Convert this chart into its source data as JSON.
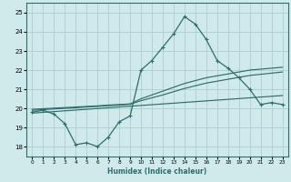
{
  "xlabel": "Humidex (Indice chaleur)",
  "ylabel": "",
  "bg_color": "#d0eaec",
  "grid_color": "#aecdd0",
  "line_color": "#2d6e6a",
  "xlim": [
    -0.5,
    23.5
  ],
  "ylim": [
    17.5,
    25.5
  ],
  "xticks": [
    0,
    1,
    2,
    3,
    4,
    5,
    6,
    7,
    8,
    9,
    10,
    11,
    12,
    13,
    14,
    15,
    16,
    17,
    18,
    19,
    20,
    21,
    22,
    23
  ],
  "yticks": [
    18,
    19,
    20,
    21,
    22,
    23,
    24,
    25
  ],
  "humidex": [
    19.8,
    19.9,
    19.7,
    19.2,
    18.1,
    18.2,
    18.0,
    18.5,
    19.3,
    19.6,
    22.0,
    22.5,
    23.2,
    23.9,
    24.8,
    24.4,
    23.6,
    22.5,
    22.1,
    21.6,
    21.0,
    20.2,
    20.3,
    20.2
  ],
  "line1": [
    19.95,
    19.98,
    20.01,
    20.04,
    20.07,
    20.1,
    20.13,
    20.17,
    20.2,
    20.23,
    20.5,
    20.7,
    20.9,
    21.1,
    21.3,
    21.45,
    21.6,
    21.7,
    21.8,
    21.9,
    22.0,
    22.05,
    22.1,
    22.15
  ],
  "line2": [
    19.9,
    19.93,
    19.97,
    20.0,
    20.03,
    20.07,
    20.1,
    20.14,
    20.17,
    20.21,
    20.4,
    20.55,
    20.7,
    20.87,
    21.04,
    21.18,
    21.32,
    21.42,
    21.52,
    21.62,
    21.72,
    21.78,
    21.84,
    21.9
  ],
  "line3": [
    19.75,
    19.79,
    19.83,
    19.87,
    19.91,
    19.95,
    19.99,
    20.03,
    20.07,
    20.11,
    20.15,
    20.19,
    20.23,
    20.27,
    20.31,
    20.35,
    20.39,
    20.43,
    20.47,
    20.51,
    20.55,
    20.59,
    20.63,
    20.67
  ]
}
